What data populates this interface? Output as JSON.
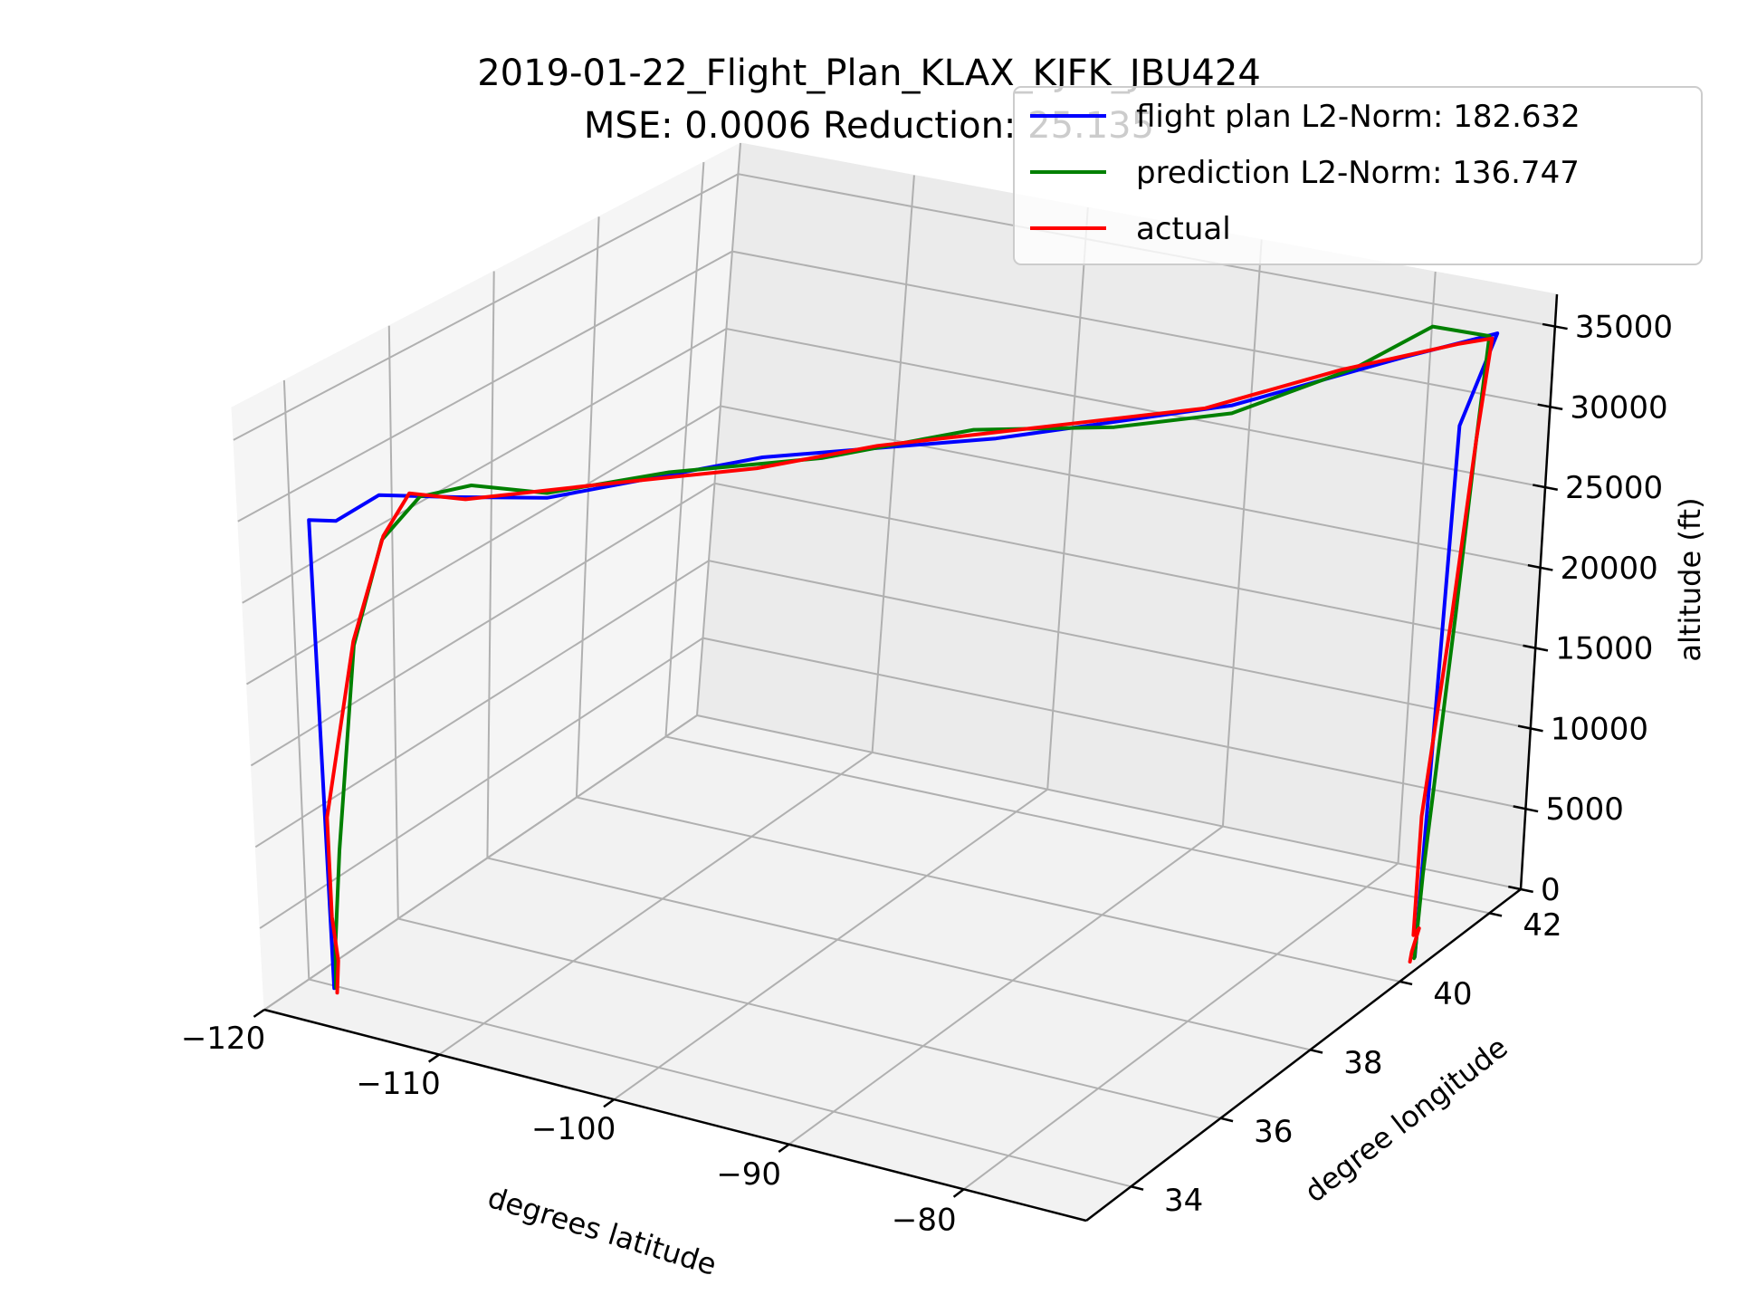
{
  "chart_data": {
    "type": "line",
    "projection": "3d",
    "title": "2019-01-22_Flight_Plan_KLAX_KJFK_JBU424",
    "subtitle": "MSE: 0.0006   Reduction: 25.135",
    "xlabel": "degrees latitude",
    "ylabel": "degree longitude",
    "zlabel": "altitude (ft)",
    "xlim": [
      -120,
      -73
    ],
    "ylim": [
      33,
      42.7
    ],
    "zlim": [
      0,
      37000
    ],
    "xticks": [
      -120,
      -110,
      -100,
      -90,
      -80
    ],
    "yticks": [
      34,
      36,
      38,
      40,
      42
    ],
    "zticks": [
      0,
      5000,
      10000,
      15000,
      20000,
      25000,
      30000,
      35000
    ],
    "grid": true,
    "legend_position": "top-right",
    "colors": {
      "flight_plan": "#0000ff",
      "prediction": "#008000",
      "actual": "#ff0000",
      "grid": "#b0b0b0"
    },
    "series": [
      {
        "name": "flight plan L2-Norm: 182.632",
        "color": "#0000ff",
        "points": [
          [
            -118.4,
            33.94,
            0
          ],
          [
            -118.8,
            33.94,
            28800
          ],
          [
            -117.5,
            34.0,
            29000
          ],
          [
            -116.5,
            34.5,
            30000
          ],
          [
            -114.5,
            35.3,
            29000
          ],
          [
            -112.0,
            36.2,
            28000
          ],
          [
            -105.0,
            38.0,
            29000
          ],
          [
            -95.0,
            39.1,
            30500
          ],
          [
            -85.0,
            40.3,
            32500
          ],
          [
            -78.0,
            41.3,
            35000
          ],
          [
            -74.3,
            41.9,
            36000
          ],
          [
            -73.7,
            40.9,
            32500
          ],
          [
            -73.78,
            40.64,
            0
          ]
        ]
      },
      {
        "name": "prediction L2-Norm: 136.747",
        "color": "#008000",
        "points": [
          [
            -118.25,
            33.92,
            100
          ],
          [
            -118.3,
            33.95,
            1000
          ],
          [
            -118.4,
            34.0,
            2500
          ],
          [
            -118.5,
            34.2,
            8000
          ],
          [
            -118.4,
            34.6,
            20000
          ],
          [
            -117.8,
            35.0,
            26000
          ],
          [
            -116.5,
            35.3,
            28500
          ],
          [
            -114.5,
            35.6,
            29200
          ],
          [
            -112.0,
            36.2,
            28300
          ],
          [
            -108.0,
            37.2,
            28800
          ],
          [
            -102.0,
            38.1,
            29500
          ],
          [
            -96.0,
            39.0,
            31000
          ],
          [
            -90.0,
            39.7,
            31200
          ],
          [
            -85.0,
            40.3,
            32000
          ],
          [
            -80.0,
            41.0,
            34500
          ],
          [
            -77.0,
            41.5,
            36700
          ],
          [
            -74.5,
            41.8,
            36000
          ],
          [
            -74.4,
            41.6,
            30000
          ],
          [
            -74.0,
            41.2,
            20000
          ],
          [
            -73.75,
            40.7,
            5000
          ],
          [
            -73.75,
            40.62,
            0
          ],
          [
            -73.72,
            40.6,
            0
          ]
        ]
      },
      {
        "name": "actual",
        "color": "#ff0000",
        "points": [
          [
            -118.0,
            33.85,
            0
          ],
          [
            -118.4,
            34.05,
            1500
          ],
          [
            -118.8,
            34.1,
            4000
          ],
          [
            -119.0,
            34.15,
            10000
          ],
          [
            -118.7,
            34.7,
            20000
          ],
          [
            -118.0,
            35.1,
            26000
          ],
          [
            -116.8,
            35.2,
            28800
          ],
          [
            -114.0,
            35.3,
            29000
          ],
          [
            -110.0,
            36.5,
            28800
          ],
          [
            -104.5,
            37.7,
            29000
          ],
          [
            -100.0,
            38.5,
            30000
          ],
          [
            -92.0,
            39.4,
            31500
          ],
          [
            -86.0,
            40.1,
            32500
          ],
          [
            -80.5,
            40.9,
            34500
          ],
          [
            -76.0,
            41.7,
            35400
          ],
          [
            -74.7,
            41.95,
            35500
          ],
          [
            -74.4,
            41.6,
            30000
          ],
          [
            -74.2,
            41.2,
            20000
          ],
          [
            -74.5,
            40.9,
            8000
          ],
          [
            -74.2,
            40.75,
            1000
          ],
          [
            -73.9,
            40.75,
            1500
          ],
          [
            -73.75,
            40.55,
            500
          ],
          [
            -73.7,
            40.5,
            0
          ]
        ]
      }
    ]
  }
}
